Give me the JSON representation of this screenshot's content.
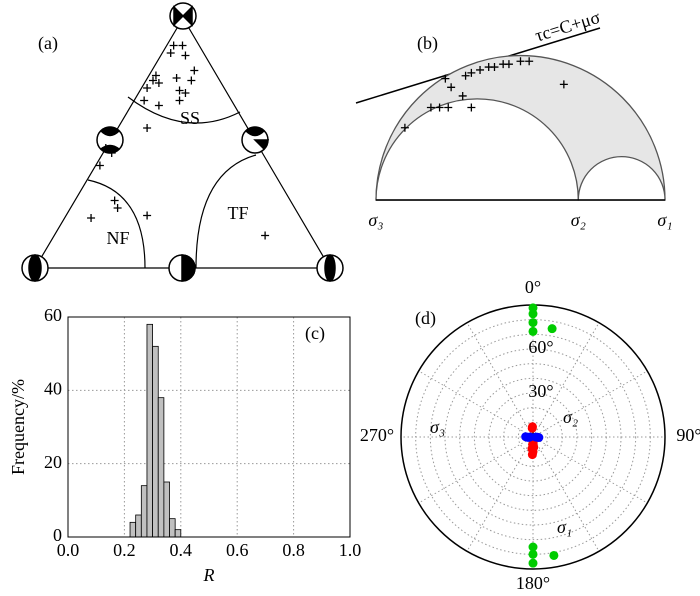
{
  "chart_data": [
    {
      "type": "ternary",
      "panel_label": "(a)",
      "region_labels": [
        "SS",
        "NF",
        "TF"
      ],
      "xlim": [
        0,
        1
      ],
      "ylim": [
        0,
        1
      ],
      "x": [
        0.47,
        0.5,
        0.46,
        0.51,
        0.41,
        0.4,
        0.42,
        0.48,
        0.53,
        0.38,
        0.49,
        0.51,
        0.42,
        0.37,
        0.54,
        0.49,
        0.38,
        0.24,
        0.26,
        0.22,
        0.27,
        0.28,
        0.19,
        0.38,
        0.78
      ],
      "values": [
        0.89,
        0.89,
        0.86,
        0.85,
        0.77,
        0.75,
        0.74,
        0.76,
        0.75,
        0.72,
        0.71,
        0.7,
        0.65,
        0.67,
        0.79,
        0.67,
        0.56,
        0.48,
        0.46,
        0.41,
        0.27,
        0.24,
        0.2,
        0.21,
        0.13
      ]
    },
    {
      "type": "mohr",
      "panel_label": "(b)",
      "annotation": "τc=C+μσ",
      "xlim": [
        0,
        1
      ],
      "xticks": [
        {
          "value": 0,
          "label": "σ₃"
        },
        {
          "value": 0.7,
          "label": "σ₂"
        },
        {
          "value": 1,
          "label": "σ₁"
        }
      ],
      "x": [
        0.1,
        0.19,
        0.22,
        0.25,
        0.3,
        0.33,
        0.26,
        0.24,
        0.31,
        0.33,
        0.36,
        0.39,
        0.41,
        0.44,
        0.46,
        0.5,
        0.53,
        0.65
      ],
      "values": [
        0.25,
        0.32,
        0.32,
        0.32,
        0.36,
        0.32,
        0.39,
        0.42,
        0.43,
        0.44,
        0.45,
        0.46,
        0.46,
        0.47,
        0.47,
        0.48,
        0.48,
        0.4
      ]
    },
    {
      "type": "histogram",
      "panel_label": "(c)",
      "xlabel": "R",
      "ylabel": "Frequency/%",
      "bins": [
        0.22,
        0.24,
        0.26,
        0.28,
        0.3,
        0.32,
        0.34,
        0.36,
        0.38,
        0.4
      ],
      "values": [
        4,
        6,
        14,
        58,
        52,
        38,
        15,
        5,
        2
      ],
      "color": "#c0c0c0",
      "grid": true,
      "xlim": [
        0,
        1
      ],
      "ylim": [
        0,
        60
      ],
      "xticks": [
        {
          "value": 0,
          "label": "0.0"
        },
        {
          "value": 0.2,
          "label": "0.2"
        },
        {
          "value": 0.4,
          "label": "0.4"
        },
        {
          "value": 0.6,
          "label": "0.6"
        },
        {
          "value": 0.8,
          "label": "0.8"
        },
        {
          "value": 1,
          "label": "1.0"
        }
      ],
      "yticks": [
        0,
        20,
        40,
        60
      ]
    },
    {
      "type": "polar",
      "panel_label": "(d)",
      "rlim": [
        90,
        0
      ],
      "rgrid": [
        10,
        20,
        30,
        40,
        50,
        60,
        70,
        80
      ],
      "rticks": [
        {
          "value": 30,
          "label": "30°"
        },
        {
          "value": 60,
          "label": "60°"
        }
      ],
      "thetagrid": [
        0,
        30,
        60,
        90,
        120,
        150,
        180,
        210,
        240,
        270,
        300,
        330
      ],
      "thetaticks": [
        {
          "value": 0,
          "label": "0°"
        },
        {
          "value": 90,
          "label": "90°"
        },
        {
          "value": 180,
          "label": "180°"
        },
        {
          "value": 270,
          "label": "270°"
        }
      ],
      "series": [
        {
          "name": "σ₁",
          "color": "#ff0000",
          "x": [
            180,
            178,
            183,
            176,
            185,
            180,
            182,
            178,
            355,
            357
          ],
          "values": [
            2,
            4,
            5,
            7,
            8,
            10,
            12,
            1,
            6,
            7
          ]
        },
        {
          "name": "σ₂",
          "color": "#00cc00",
          "x": [
            0,
            0,
            0,
            180,
            180,
            10,
            170,
            0,
            180
          ],
          "values": [
            78,
            72,
            84,
            80,
            86,
            75,
            82,
            88,
            75
          ]
        },
        {
          "name": "σ₃",
          "color": "#0000ff",
          "x": [
            265,
            268,
            272,
            270,
            93,
            95,
            92
          ],
          "values": [
            3,
            4,
            5,
            2,
            3,
            4,
            2
          ]
        }
      ]
    }
  ]
}
